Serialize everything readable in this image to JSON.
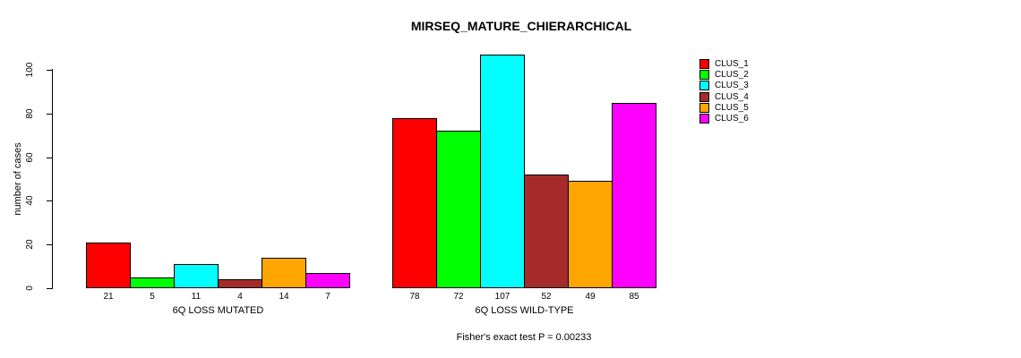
{
  "chart_data": {
    "type": "bar",
    "title": "MIRSEQ_MATURE_CHIERARCHICAL",
    "ylabel": "number of cases",
    "footnote": "Fisher's exact test P = 0.00233",
    "ylim": [
      0,
      100
    ],
    "yticks": [
      0,
      20,
      40,
      60,
      80,
      100
    ],
    "grid": false,
    "legend_position": "right",
    "bar_border_color": "#000000",
    "background_color": "#FFFFFF",
    "categories": [
      "6Q LOSS MUTATED",
      "6Q LOSS WILD-TYPE"
    ],
    "series": [
      {
        "name": "CLUS_1",
        "color": "#FF0000",
        "values": [
          21,
          78
        ]
      },
      {
        "name": "CLUS_2",
        "color": "#00FF00",
        "values": [
          5,
          72
        ]
      },
      {
        "name": "CLUS_3",
        "color": "#00FFFF",
        "values": [
          11,
          107
        ]
      },
      {
        "name": "CLUS_4",
        "color": "#A52A2A",
        "values": [
          4,
          52
        ]
      },
      {
        "name": "CLUS_5",
        "color": "#FFA500",
        "values": [
          14,
          49
        ]
      },
      {
        "name": "CLUS_6",
        "color": "#FF00FF",
        "values": [
          7,
          85
        ]
      }
    ]
  }
}
